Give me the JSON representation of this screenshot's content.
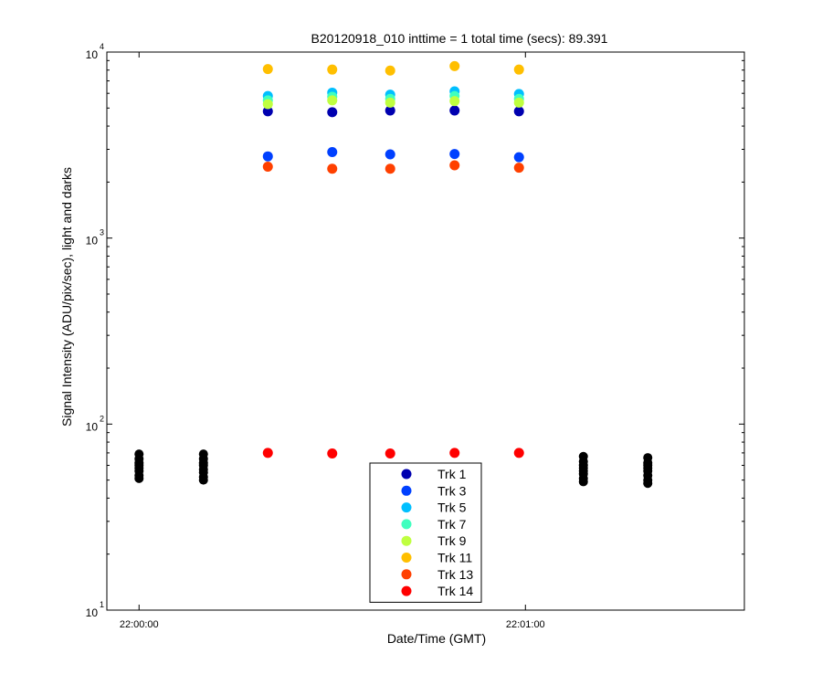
{
  "chart_data": {
    "type": "scatter",
    "title": "B20120918_010 inttime = 1 total time (secs): 89.391",
    "xlabel": "Date/Time (GMT)",
    "ylabel": "Signal Intensity (ADU/pix/sec), light and darks",
    "y_scale": "log",
    "ylim": [
      10,
      10000
    ],
    "xlim": [
      "21:59:55",
      "22:01:34"
    ],
    "x_ticks": [
      {
        "t": "22:00:00",
        "label": "22:00:00"
      },
      {
        "t": "22:01:00",
        "label": "22:01:00"
      }
    ],
    "y_ticks": [
      {
        "value": 10,
        "base": "10",
        "exp": "1"
      },
      {
        "value": 100,
        "base": "10",
        "exp": "2"
      },
      {
        "value": 1000,
        "base": "10",
        "exp": "3"
      },
      {
        "value": 10000,
        "base": "10",
        "exp": "4"
      }
    ],
    "grid": false,
    "legend_position": "bottom-center",
    "light_times": [
      "22:00:20",
      "22:00:30",
      "22:00:39",
      "22:00:49",
      "22:00:59"
    ],
    "series": [
      {
        "name": "Trk 1",
        "color": "#0000b0",
        "values": [
          4800,
          4750,
          4850,
          4850,
          4800
        ]
      },
      {
        "name": "Trk 3",
        "color": "#0040ff",
        "values": [
          2750,
          2900,
          2820,
          2830,
          2720
        ]
      },
      {
        "name": "Trk 5",
        "color": "#00bfff",
        "values": [
          5800,
          6050,
          5900,
          6150,
          5950
        ]
      },
      {
        "name": "Trk 7",
        "color": "#40ffbf",
        "values": [
          5500,
          5750,
          5600,
          5800,
          5600
        ]
      },
      {
        "name": "Trk 9",
        "color": "#bfff40",
        "values": [
          5250,
          5500,
          5350,
          5450,
          5350
        ]
      },
      {
        "name": "Trk 11",
        "color": "#ffbf00",
        "values": [
          8100,
          8050,
          7950,
          8400,
          8050
        ]
      },
      {
        "name": "Trk 13",
        "color": "#ff4000",
        "values": [
          2420,
          2360,
          2360,
          2460,
          2390
        ]
      },
      {
        "name": "Trk 14",
        "color": "#ff0000",
        "values": [
          70,
          69.5,
          69.5,
          70,
          70
        ]
      }
    ],
    "darks": {
      "color": "#000000",
      "points": [
        {
          "t": "22:00:00",
          "values": [
            69,
            65,
            62,
            60,
            58,
            56,
            53,
            51
          ]
        },
        {
          "t": "22:00:10",
          "values": [
            69,
            65,
            62,
            60,
            57,
            55,
            52,
            50
          ]
        },
        {
          "t": "22:01:09",
          "values": [
            67,
            63,
            60,
            58,
            56,
            54,
            51,
            49
          ]
        },
        {
          "t": "22:01:19",
          "values": [
            66,
            62,
            60,
            58,
            56,
            53,
            50,
            48
          ]
        }
      ]
    }
  }
}
